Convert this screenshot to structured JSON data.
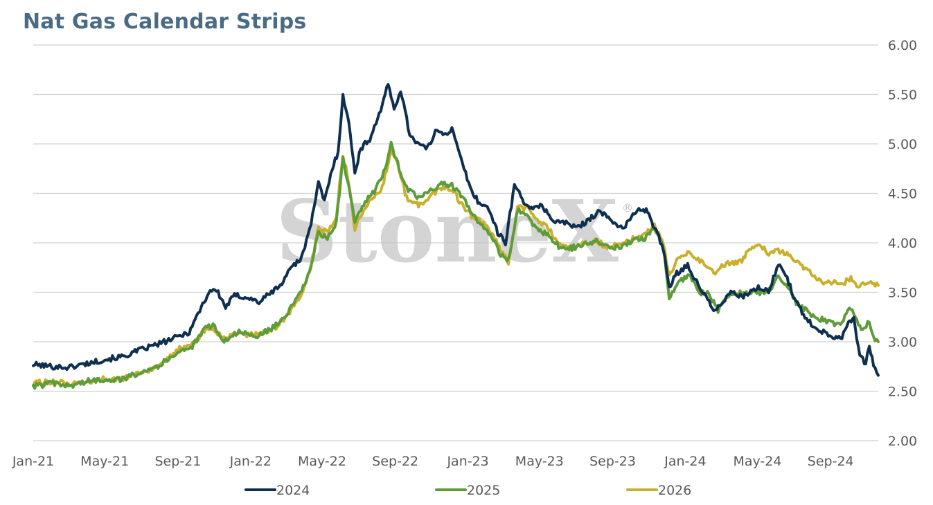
{
  "chart_data": {
    "type": "line",
    "title": "Nat Gas Calendar Strips",
    "x_tick_labels": [
      "Jan-21",
      "May-21",
      "Sep-21",
      "Jan-22",
      "May-22",
      "Sep-22",
      "Jan-23",
      "May-23",
      "Sep-23",
      "Jan-24",
      "May-24",
      "Sep-24"
    ],
    "y_tick_labels": [
      "2.00",
      "2.50",
      "3.00",
      "3.50",
      "4.00",
      "4.50",
      "5.00",
      "5.50",
      "6.00"
    ],
    "ylim": [
      2.0,
      6.0
    ],
    "xlim": [
      "2021-01-01",
      "2024-11-20"
    ],
    "y_axis_side": "right",
    "grid": "horizontal",
    "legend_position": "bottom",
    "watermark": "StoneX",
    "series": [
      {
        "name": "2024",
        "color": "#0e2f4f",
        "points": [
          [
            "2021-01-01",
            2.77
          ],
          [
            "2021-02-01",
            2.75
          ],
          [
            "2021-03-01",
            2.74
          ],
          [
            "2021-04-01",
            2.78
          ],
          [
            "2021-05-01",
            2.82
          ],
          [
            "2021-06-01",
            2.85
          ],
          [
            "2021-07-01",
            2.92
          ],
          [
            "2021-08-01",
            2.98
          ],
          [
            "2021-09-01",
            3.05
          ],
          [
            "2021-09-20",
            3.1
          ],
          [
            "2021-10-10",
            3.35
          ],
          [
            "2021-10-25",
            3.52
          ],
          [
            "2021-11-05",
            3.52
          ],
          [
            "2021-11-20",
            3.35
          ],
          [
            "2021-12-05",
            3.47
          ],
          [
            "2021-12-25",
            3.45
          ],
          [
            "2022-01-15",
            3.4
          ],
          [
            "2022-02-05",
            3.5
          ],
          [
            "2022-02-25",
            3.6
          ],
          [
            "2022-03-10",
            3.77
          ],
          [
            "2022-03-25",
            3.82
          ],
          [
            "2022-04-10",
            4.12
          ],
          [
            "2022-04-25",
            4.6
          ],
          [
            "2022-05-05",
            4.42
          ],
          [
            "2022-05-18",
            4.75
          ],
          [
            "2022-05-28",
            4.92
          ],
          [
            "2022-06-05",
            5.5
          ],
          [
            "2022-06-15",
            5.2
          ],
          [
            "2022-06-25",
            4.72
          ],
          [
            "2022-07-05",
            4.95
          ],
          [
            "2022-07-20",
            5.05
          ],
          [
            "2022-08-05",
            5.3
          ],
          [
            "2022-08-20",
            5.6
          ],
          [
            "2022-08-30",
            5.35
          ],
          [
            "2022-09-10",
            5.55
          ],
          [
            "2022-09-25",
            5.1
          ],
          [
            "2022-10-10",
            5.0
          ],
          [
            "2022-10-25",
            4.95
          ],
          [
            "2022-11-10",
            5.15
          ],
          [
            "2022-11-25",
            5.1
          ],
          [
            "2022-12-05",
            5.15
          ],
          [
            "2022-12-15",
            4.95
          ],
          [
            "2023-01-05",
            4.55
          ],
          [
            "2023-01-20",
            4.4
          ],
          [
            "2023-02-05",
            4.35
          ],
          [
            "2023-02-20",
            4.1
          ],
          [
            "2023-03-05",
            4.0
          ],
          [
            "2023-03-20",
            4.58
          ],
          [
            "2023-04-05",
            4.42
          ],
          [
            "2023-04-20",
            4.33
          ],
          [
            "2023-05-05",
            4.38
          ],
          [
            "2023-05-25",
            4.22
          ],
          [
            "2023-06-15",
            4.2
          ],
          [
            "2023-07-05",
            4.15
          ],
          [
            "2023-07-25",
            4.25
          ],
          [
            "2023-08-10",
            4.32
          ],
          [
            "2023-08-30",
            4.22
          ],
          [
            "2023-09-20",
            4.15
          ],
          [
            "2023-10-05",
            4.28
          ],
          [
            "2023-10-20",
            4.35
          ],
          [
            "2023-11-01",
            4.3
          ],
          [
            "2023-11-10",
            4.15
          ],
          [
            "2023-11-25",
            3.95
          ],
          [
            "2023-12-05",
            3.55
          ],
          [
            "2023-12-15",
            3.68
          ],
          [
            "2024-01-05",
            3.78
          ],
          [
            "2024-01-15",
            3.65
          ],
          [
            "2024-01-25",
            3.55
          ],
          [
            "2024-02-05",
            3.45
          ],
          [
            "2024-02-20",
            3.3
          ],
          [
            "2024-03-05",
            3.42
          ],
          [
            "2024-03-20",
            3.5
          ],
          [
            "2024-04-05",
            3.45
          ],
          [
            "2024-04-20",
            3.5
          ],
          [
            "2024-05-05",
            3.55
          ],
          [
            "2024-05-20",
            3.5
          ],
          [
            "2024-06-05",
            3.78
          ],
          [
            "2024-06-15",
            3.72
          ],
          [
            "2024-07-05",
            3.4
          ],
          [
            "2024-07-20",
            3.25
          ],
          [
            "2024-08-05",
            3.15
          ],
          [
            "2024-08-20",
            3.1
          ],
          [
            "2024-09-05",
            3.05
          ],
          [
            "2024-09-20",
            3.05
          ],
          [
            "2024-10-01",
            3.2
          ],
          [
            "2024-10-10",
            3.25
          ],
          [
            "2024-10-20",
            2.85
          ],
          [
            "2024-10-30",
            2.78
          ],
          [
            "2024-11-05",
            2.95
          ],
          [
            "2024-11-12",
            2.78
          ],
          [
            "2024-11-20",
            2.66
          ]
        ]
      },
      {
        "name": "2025",
        "color": "#5e9c3b",
        "points": [
          [
            "2021-01-01",
            2.55
          ],
          [
            "2021-02-01",
            2.58
          ],
          [
            "2021-03-01",
            2.55
          ],
          [
            "2021-04-01",
            2.6
          ],
          [
            "2021-05-01",
            2.62
          ],
          [
            "2021-06-01",
            2.62
          ],
          [
            "2021-07-01",
            2.7
          ],
          [
            "2021-08-01",
            2.76
          ],
          [
            "2021-09-01",
            2.9
          ],
          [
            "2021-09-25",
            2.95
          ],
          [
            "2021-10-15",
            3.12
          ],
          [
            "2021-10-30",
            3.18
          ],
          [
            "2021-11-15",
            3.0
          ],
          [
            "2021-12-10",
            3.1
          ],
          [
            "2022-01-10",
            3.05
          ],
          [
            "2022-02-10",
            3.15
          ],
          [
            "2022-03-05",
            3.3
          ],
          [
            "2022-03-25",
            3.48
          ],
          [
            "2022-04-10",
            3.7
          ],
          [
            "2022-04-25",
            4.1
          ],
          [
            "2022-05-10",
            4.05
          ],
          [
            "2022-05-25",
            4.2
          ],
          [
            "2022-06-05",
            4.85
          ],
          [
            "2022-06-15",
            4.55
          ],
          [
            "2022-06-25",
            4.2
          ],
          [
            "2022-07-10",
            4.4
          ],
          [
            "2022-07-25",
            4.5
          ],
          [
            "2022-08-10",
            4.65
          ],
          [
            "2022-08-25",
            5.0
          ],
          [
            "2022-09-05",
            4.8
          ],
          [
            "2022-09-20",
            4.55
          ],
          [
            "2022-10-10",
            4.45
          ],
          [
            "2022-10-25",
            4.5
          ],
          [
            "2022-11-15",
            4.6
          ],
          [
            "2022-12-05",
            4.58
          ],
          [
            "2022-12-20",
            4.48
          ],
          [
            "2023-01-10",
            4.28
          ],
          [
            "2023-01-25",
            4.18
          ],
          [
            "2023-02-10",
            4.05
          ],
          [
            "2023-02-25",
            3.88
          ],
          [
            "2023-03-10",
            3.82
          ],
          [
            "2023-03-25",
            4.33
          ],
          [
            "2023-04-10",
            4.28
          ],
          [
            "2023-04-25",
            4.15
          ],
          [
            "2023-05-15",
            4.08
          ],
          [
            "2023-06-05",
            3.95
          ],
          [
            "2023-06-25",
            3.95
          ],
          [
            "2023-07-15",
            3.98
          ],
          [
            "2023-08-05",
            4.02
          ],
          [
            "2023-08-25",
            3.95
          ],
          [
            "2023-09-15",
            3.95
          ],
          [
            "2023-10-05",
            4.02
          ],
          [
            "2023-10-25",
            4.05
          ],
          [
            "2023-11-10",
            4.15
          ],
          [
            "2023-11-25",
            3.95
          ],
          [
            "2023-12-05",
            3.45
          ],
          [
            "2023-12-15",
            3.55
          ],
          [
            "2024-01-05",
            3.68
          ],
          [
            "2024-01-15",
            3.6
          ],
          [
            "2024-01-25",
            3.5
          ],
          [
            "2024-02-10",
            3.48
          ],
          [
            "2024-02-25",
            3.32
          ],
          [
            "2024-03-10",
            3.45
          ],
          [
            "2024-03-25",
            3.5
          ],
          [
            "2024-04-10",
            3.48
          ],
          [
            "2024-04-25",
            3.5
          ],
          [
            "2024-05-10",
            3.5
          ],
          [
            "2024-05-25",
            3.55
          ],
          [
            "2024-06-05",
            3.68
          ],
          [
            "2024-06-20",
            3.55
          ],
          [
            "2024-07-05",
            3.4
          ],
          [
            "2024-07-20",
            3.32
          ],
          [
            "2024-08-05",
            3.25
          ],
          [
            "2024-08-20",
            3.22
          ],
          [
            "2024-09-05",
            3.18
          ],
          [
            "2024-09-20",
            3.2
          ],
          [
            "2024-10-05",
            3.35
          ],
          [
            "2024-10-15",
            3.22
          ],
          [
            "2024-10-25",
            3.1
          ],
          [
            "2024-11-05",
            3.22
          ],
          [
            "2024-11-12",
            3.05
          ],
          [
            "2024-11-20",
            3.0
          ]
        ]
      },
      {
        "name": "2026",
        "color": "#c9b02c",
        "points": [
          [
            "2021-01-01",
            2.58
          ],
          [
            "2021-02-01",
            2.6
          ],
          [
            "2021-03-01",
            2.57
          ],
          [
            "2021-04-01",
            2.58
          ],
          [
            "2021-05-01",
            2.63
          ],
          [
            "2021-06-01",
            2.62
          ],
          [
            "2021-07-01",
            2.7
          ],
          [
            "2021-08-01",
            2.74
          ],
          [
            "2021-09-01",
            2.92
          ],
          [
            "2021-09-25",
            2.97
          ],
          [
            "2021-10-15",
            3.1
          ],
          [
            "2021-10-30",
            3.15
          ],
          [
            "2021-11-15",
            3.02
          ],
          [
            "2021-12-10",
            3.08
          ],
          [
            "2022-01-10",
            3.07
          ],
          [
            "2022-02-10",
            3.13
          ],
          [
            "2022-03-05",
            3.28
          ],
          [
            "2022-03-25",
            3.45
          ],
          [
            "2022-04-10",
            3.7
          ],
          [
            "2022-04-25",
            4.15
          ],
          [
            "2022-05-10",
            4.1
          ],
          [
            "2022-05-25",
            4.25
          ],
          [
            "2022-06-05",
            4.9
          ],
          [
            "2022-06-15",
            4.6
          ],
          [
            "2022-06-25",
            4.15
          ],
          [
            "2022-07-10",
            4.35
          ],
          [
            "2022-07-25",
            4.45
          ],
          [
            "2022-08-10",
            4.55
          ],
          [
            "2022-08-25",
            4.95
          ],
          [
            "2022-09-05",
            4.78
          ],
          [
            "2022-09-20",
            4.45
          ],
          [
            "2022-10-10",
            4.38
          ],
          [
            "2022-10-25",
            4.45
          ],
          [
            "2022-11-15",
            4.55
          ],
          [
            "2022-12-05",
            4.55
          ],
          [
            "2022-12-20",
            4.4
          ],
          [
            "2023-01-10",
            4.25
          ],
          [
            "2023-01-25",
            4.2
          ],
          [
            "2023-02-10",
            4.1
          ],
          [
            "2023-02-25",
            3.92
          ],
          [
            "2023-03-10",
            3.8
          ],
          [
            "2023-03-25",
            4.35
          ],
          [
            "2023-04-10",
            4.35
          ],
          [
            "2023-04-25",
            4.25
          ],
          [
            "2023-05-15",
            4.15
          ],
          [
            "2023-06-05",
            3.98
          ],
          [
            "2023-06-25",
            3.95
          ],
          [
            "2023-07-15",
            4.0
          ],
          [
            "2023-08-05",
            4.02
          ],
          [
            "2023-08-25",
            3.95
          ],
          [
            "2023-09-15",
            4.0
          ],
          [
            "2023-10-05",
            4.05
          ],
          [
            "2023-10-25",
            4.08
          ],
          [
            "2023-11-10",
            4.18
          ],
          [
            "2023-11-25",
            4.0
          ],
          [
            "2023-12-05",
            3.65
          ],
          [
            "2023-12-15",
            3.8
          ],
          [
            "2024-01-05",
            3.9
          ],
          [
            "2024-01-20",
            3.85
          ],
          [
            "2024-02-05",
            3.78
          ],
          [
            "2024-02-20",
            3.68
          ],
          [
            "2024-03-05",
            3.78
          ],
          [
            "2024-03-20",
            3.8
          ],
          [
            "2024-04-05",
            3.82
          ],
          [
            "2024-04-20",
            3.95
          ],
          [
            "2024-05-05",
            4.0
          ],
          [
            "2024-05-20",
            3.88
          ],
          [
            "2024-06-05",
            3.92
          ],
          [
            "2024-06-20",
            3.88
          ],
          [
            "2024-07-05",
            3.8
          ],
          [
            "2024-07-20",
            3.75
          ],
          [
            "2024-08-05",
            3.65
          ],
          [
            "2024-08-20",
            3.58
          ],
          [
            "2024-09-05",
            3.6
          ],
          [
            "2024-09-20",
            3.58
          ],
          [
            "2024-10-05",
            3.65
          ],
          [
            "2024-10-20",
            3.55
          ],
          [
            "2024-11-05",
            3.62
          ],
          [
            "2024-11-20",
            3.57
          ]
        ]
      }
    ]
  }
}
